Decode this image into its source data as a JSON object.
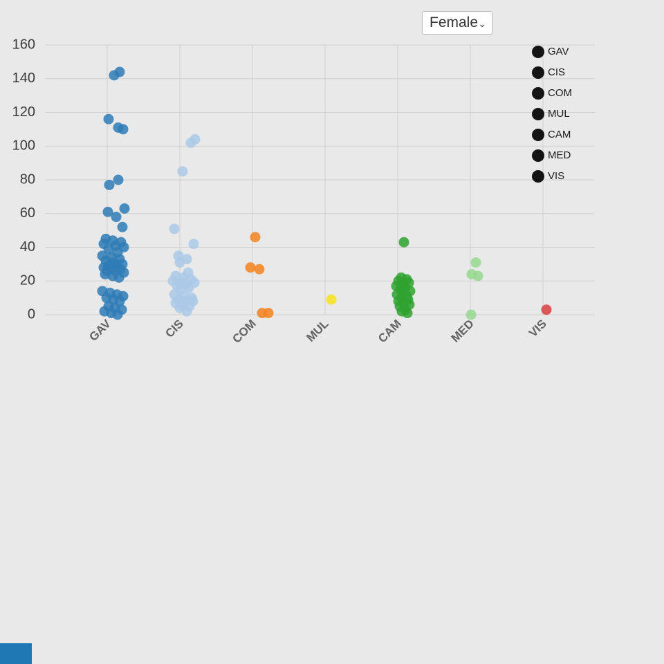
{
  "dropdown": {
    "value": "Female",
    "chevron": "⌄"
  },
  "accent": {
    "color": "#1f77b4"
  },
  "chart_data": {
    "type": "scatter",
    "subtype": "jittered-strip",
    "title": "",
    "xlabel": "",
    "ylabel": "",
    "ylim": [
      0,
      160
    ],
    "yticks": [
      0,
      20,
      40,
      60,
      80,
      100,
      120,
      140,
      160
    ],
    "grid": true,
    "grid_color": "#cfcfcf",
    "tick_label_color": "#3a3a3a",
    "category_label_color": "#636363",
    "legend_position": "top-right",
    "legend_icon_color": "#141414",
    "legend_text_color": "#1a1a1a",
    "categories": [
      "GAV",
      "CIS",
      "COM",
      "MUL",
      "CAM",
      "MED",
      "VIS"
    ],
    "legend": [
      "GAV",
      "CIS",
      "COM",
      "MUL",
      "CAM",
      "MED",
      "VIS"
    ],
    "series": [
      {
        "name": "GAV",
        "color": "#2f7bb6",
        "points": [
          [
            18,
            144
          ],
          [
            10,
            142
          ],
          [
            2,
            116
          ],
          [
            16,
            111
          ],
          [
            23,
            110
          ],
          [
            16,
            80
          ],
          [
            3,
            77
          ],
          [
            25,
            63
          ],
          [
            1,
            61
          ],
          [
            13,
            58
          ],
          [
            22,
            52
          ],
          [
            -2,
            45
          ],
          [
            8,
            44
          ],
          [
            20,
            43
          ],
          [
            -5,
            42
          ],
          [
            12,
            41
          ],
          [
            24,
            40
          ],
          [
            2,
            39
          ],
          [
            15,
            37
          ],
          [
            -7,
            35
          ],
          [
            6,
            34
          ],
          [
            18,
            33
          ],
          [
            -2,
            32
          ],
          [
            10,
            31
          ],
          [
            22,
            30
          ],
          [
            1,
            29
          ],
          [
            13,
            29
          ],
          [
            -5,
            28
          ],
          [
            7,
            28
          ],
          [
            19,
            27
          ],
          [
            0,
            26
          ],
          [
            12,
            26
          ],
          [
            24,
            25
          ],
          [
            -3,
            24
          ],
          [
            8,
            23
          ],
          [
            17,
            22
          ],
          [
            -7,
            14
          ],
          [
            4,
            13
          ],
          [
            14,
            12
          ],
          [
            23,
            11
          ],
          [
            -1,
            10
          ],
          [
            9,
            9
          ],
          [
            18,
            8
          ],
          [
            2,
            5
          ],
          [
            11,
            4
          ],
          [
            21,
            3
          ],
          [
            -4,
            2
          ],
          [
            6,
            1
          ],
          [
            15,
            0
          ]
        ]
      },
      {
        "name": "CIS",
        "color": "#aac9e8",
        "points": [
          [
            22,
            104
          ],
          [
            16,
            102
          ],
          [
            4,
            85
          ],
          [
            -8,
            51
          ],
          [
            20,
            42
          ],
          [
            -2,
            35
          ],
          [
            10,
            33
          ],
          [
            0,
            31
          ],
          [
            12,
            25
          ],
          [
            -6,
            23
          ],
          [
            5,
            22
          ],
          [
            16,
            21
          ],
          [
            -10,
            20
          ],
          [
            2,
            19
          ],
          [
            21,
            19
          ],
          [
            9,
            18
          ],
          [
            -4,
            17
          ],
          [
            13,
            16
          ],
          [
            1,
            15
          ],
          [
            -8,
            12
          ],
          [
            6,
            11
          ],
          [
            17,
            10
          ],
          [
            -2,
            9
          ],
          [
            8,
            8
          ],
          [
            19,
            8
          ],
          [
            -6,
            7
          ],
          [
            4,
            6
          ],
          [
            14,
            5
          ],
          [
            0,
            4
          ],
          [
            10,
            2
          ]
        ]
      },
      {
        "name": "COM",
        "color": "#f5821f",
        "points": [
          [
            4,
            46
          ],
          [
            -3,
            28
          ],
          [
            10,
            27
          ],
          [
            14,
            1
          ],
          [
            23,
            1
          ]
        ]
      },
      {
        "name": "MUL",
        "color": "#f7e01c",
        "points": [
          [
            9,
            9
          ]
        ]
      },
      {
        "name": "CAM",
        "color": "#2fa22f",
        "points": [
          [
            9,
            43
          ],
          [
            5,
            22
          ],
          [
            13,
            21
          ],
          [
            1,
            20
          ],
          [
            16,
            19
          ],
          [
            8,
            18
          ],
          [
            -2,
            17
          ],
          [
            11,
            16
          ],
          [
            4,
            15
          ],
          [
            18,
            14
          ],
          [
            7,
            13
          ],
          [
            -1,
            12
          ],
          [
            13,
            11
          ],
          [
            5,
            10
          ],
          [
            15,
            9
          ],
          [
            1,
            8
          ],
          [
            9,
            7
          ],
          [
            17,
            6
          ],
          [
            3,
            5
          ],
          [
            11,
            3
          ],
          [
            6,
            2
          ],
          [
            14,
            1
          ]
        ]
      },
      {
        "name": "MED",
        "color": "#97d88e",
        "points": [
          [
            8,
            31
          ],
          [
            2,
            24
          ],
          [
            11,
            23
          ],
          [
            1,
            0
          ]
        ]
      },
      {
        "name": "VIS",
        "color": "#d94040",
        "points": [
          [
            5,
            3
          ]
        ]
      }
    ]
  }
}
